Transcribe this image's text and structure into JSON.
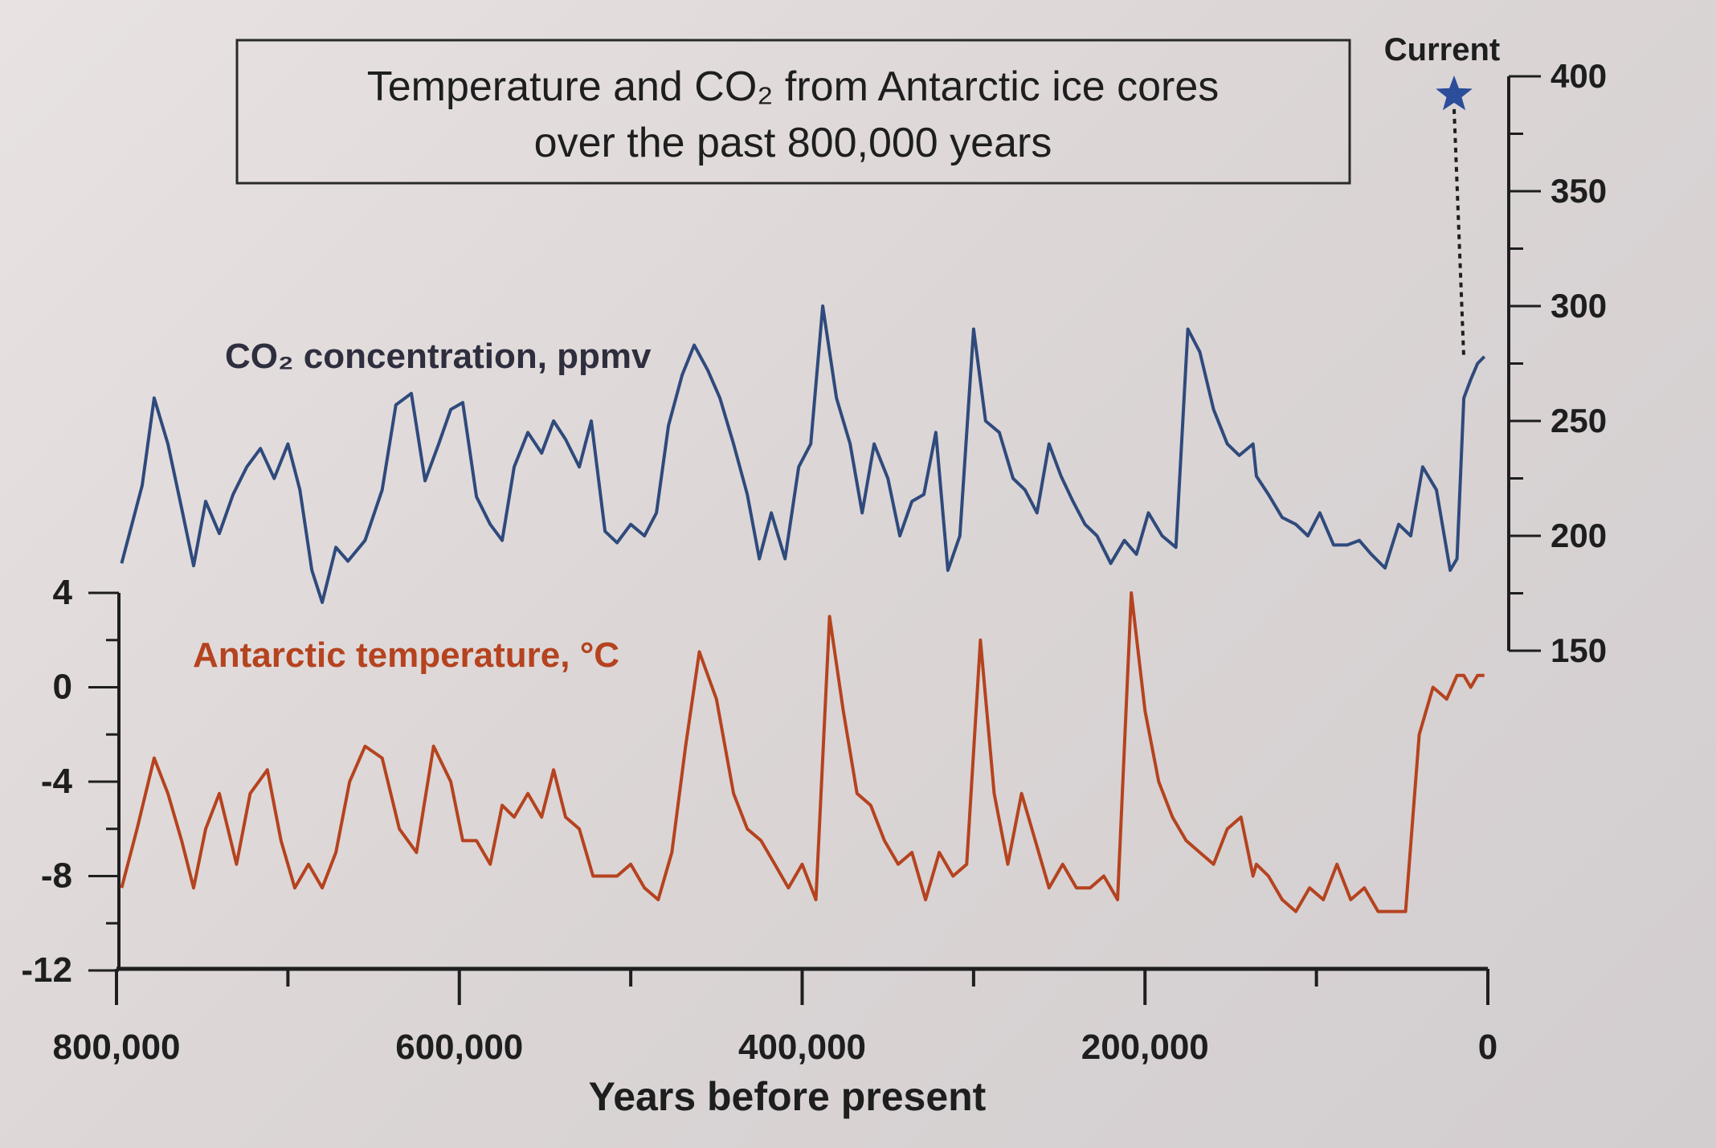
{
  "chart_data": {
    "type": "line",
    "title_lines": [
      "Temperature and CO₂ from Antarctic ice cores",
      "over the past 800,000 years"
    ],
    "xlabel": "Years before present",
    "x_tick_labels": [
      "800,000",
      "600,000",
      "400,000",
      "200,000",
      "0"
    ],
    "x_ticks": [
      800000,
      600000,
      400000,
      200000,
      0
    ],
    "xlim": [
      800000,
      0
    ],
    "y_left": {
      "label": "Antarctic temperature, °C",
      "ticks": [
        4,
        0,
        -4,
        -8,
        -12
      ],
      "tick_labels": [
        "4",
        "0",
        "-4",
        "-8",
        "-12"
      ],
      "ylim": [
        -12,
        4
      ]
    },
    "y_right": {
      "label": "CO₂ concentration, ppmv",
      "ticks": [
        400,
        350,
        300,
        250,
        200,
        150
      ],
      "tick_labels": [
        "400",
        "350",
        "300",
        "250",
        "200",
        "150"
      ],
      "ylim": [
        150,
        400
      ]
    },
    "current_marker": {
      "label": "Current",
      "year": 0,
      "co2": 392
    },
    "grid": false,
    "colors": {
      "co2": "#2f4a7c",
      "temperature": "#b5431f",
      "star": "#2b4d9a",
      "axis": "#1e1e1e"
    },
    "series": [
      {
        "name": "CO₂ concentration, ppmv",
        "axis": "right",
        "x": [
          797000,
          785000,
          778000,
          770000,
          762000,
          755000,
          748000,
          740000,
          732000,
          724000,
          716000,
          708000,
          700000,
          693000,
          686000,
          680000,
          672000,
          665000,
          655000,
          645000,
          637000,
          628000,
          620000,
          612000,
          605000,
          598000,
          590000,
          582000,
          575000,
          568000,
          560000,
          552000,
          545000,
          538000,
          530000,
          523000,
          515000,
          508000,
          500000,
          492000,
          485000,
          478000,
          470000,
          463000,
          455000,
          448000,
          440000,
          432000,
          425000,
          418000,
          410000,
          402000,
          395000,
          388000,
          380000,
          372000,
          365000,
          358000,
          350000,
          343000,
          336000,
          329000,
          322000,
          315000,
          308000,
          300000,
          293000,
          285000,
          277000,
          270000,
          263000,
          256000,
          249000,
          242000,
          235000,
          228000,
          220000,
          212000,
          205000,
          198000,
          190000,
          182000,
          175000,
          168000,
          160000,
          152000,
          145000,
          137000,
          135000,
          128000,
          120000,
          112000,
          105000,
          98000,
          90000,
          82000,
          75000,
          68000,
          60000,
          52000,
          45000,
          38000,
          30000,
          22000,
          18000,
          14000,
          10000,
          6000,
          2000
        ],
        "values": [
          188,
          222,
          260,
          240,
          212,
          187,
          215,
          201,
          218,
          230,
          238,
          225,
          240,
          220,
          185,
          171,
          195,
          189,
          198,
          220,
          257,
          262,
          224,
          240,
          255,
          258,
          217,
          205,
          198,
          230,
          245,
          236,
          250,
          242,
          230,
          250,
          202,
          197,
          205,
          200,
          210,
          248,
          270,
          283,
          272,
          260,
          240,
          218,
          190,
          210,
          190,
          230,
          240,
          300,
          260,
          240,
          210,
          240,
          225,
          200,
          215,
          218,
          245,
          185,
          200,
          290,
          250,
          245,
          225,
          220,
          210,
          240,
          226,
          215,
          205,
          200,
          188,
          198,
          192,
          210,
          200,
          195,
          290,
          280,
          255,
          240,
          235,
          240,
          226,
          218,
          208,
          205,
          200,
          210,
          196,
          196,
          198,
          192,
          186,
          205,
          200,
          230,
          220,
          185,
          190,
          260,
          268,
          275,
          278
        ]
      },
      {
        "name": "Antarctic temperature, °C",
        "axis": "left",
        "x": [
          797000,
          788000,
          778000,
          770000,
          762000,
          755000,
          748000,
          740000,
          730000,
          722000,
          712000,
          704000,
          696000,
          688000,
          680000,
          672000,
          664000,
          655000,
          645000,
          635000,
          625000,
          615000,
          605000,
          598000,
          590000,
          582000,
          575000,
          568000,
          560000,
          552000,
          545000,
          538000,
          530000,
          522000,
          515000,
          508000,
          500000,
          492000,
          484000,
          476000,
          468000,
          460000,
          450000,
          440000,
          432000,
          424000,
          416000,
          408000,
          400000,
          392000,
          384000,
          376000,
          368000,
          360000,
          352000,
          344000,
          336000,
          328000,
          320000,
          312000,
          304000,
          296000,
          288000,
          280000,
          272000,
          264000,
          256000,
          248000,
          240000,
          232000,
          224000,
          216000,
          208000,
          200000,
          192000,
          184000,
          176000,
          168000,
          160000,
          152000,
          144000,
          137000,
          135000,
          128000,
          120000,
          112000,
          104000,
          96000,
          88000,
          80000,
          72000,
          64000,
          56000,
          48000,
          40000,
          32000,
          24000,
          18000,
          14000,
          10000,
          6000,
          2000
        ],
        "values": [
          -8.5,
          -6,
          -3,
          -4.5,
          -6.5,
          -8.5,
          -6,
          -4.5,
          -7.5,
          -4.5,
          -3.5,
          -6.5,
          -8.5,
          -7.5,
          -8.5,
          -7,
          -4,
          -2.5,
          -3,
          -6,
          -7,
          -2.5,
          -4,
          -6.5,
          -6.5,
          -7.5,
          -5,
          -5.5,
          -4.5,
          -5.5,
          -3.5,
          -5.5,
          -6,
          -8,
          -8,
          -8,
          -7.5,
          -8.5,
          -9,
          -7,
          -2.5,
          1.5,
          -0.5,
          -4.5,
          -6,
          -6.5,
          -7.5,
          -8.5,
          -7.5,
          -9,
          3,
          -1,
          -4.5,
          -5,
          -6.5,
          -7.5,
          -7,
          -9,
          -7,
          -8,
          -7.5,
          2,
          -4.5,
          -7.5,
          -4.5,
          -6.5,
          -8.5,
          -7.5,
          -8.5,
          -8.5,
          -8,
          -9,
          4,
          -1,
          -4,
          -5.5,
          -6.5,
          -7,
          -7.5,
          -6,
          -5.5,
          -8,
          -7.5,
          -8,
          -9,
          -9.5,
          -8.5,
          -9,
          -7.5,
          -9,
          -8.5,
          -9.5,
          -9.5,
          -9.5,
          -2,
          0,
          -0.5,
          0.5,
          0.5,
          0,
          0.5,
          0.5
        ]
      }
    ]
  }
}
